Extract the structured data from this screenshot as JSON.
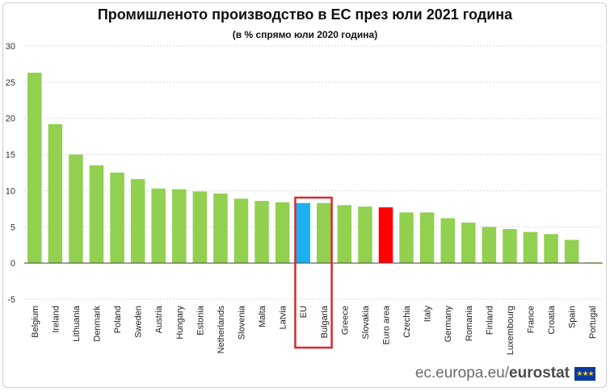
{
  "title": "Промишленото производство в ЕС през юли 2021 година",
  "subtitle": "(в % спрямо юли 2020 година)",
  "footer": {
    "site": "ec.europa.eu/",
    "brand": "eurostat",
    "flag_icon": "eu-flag-icon"
  },
  "colors": {
    "default": "#92d050",
    "eu": "#1bb0ef",
    "euro_area": "#ff0000",
    "highlight_box": "#d9282f",
    "grid": "#d9d9d9"
  },
  "chart_data": {
    "type": "bar",
    "title": "Промишленото производство в ЕС през юли 2021 година",
    "subtitle": "(в % спрямо юли 2020 година)",
    "ylim": [
      -5,
      30
    ],
    "yticks": [
      -5,
      0,
      5,
      10,
      15,
      20,
      25,
      30
    ],
    "grid": true,
    "categories": [
      "Belgium",
      "Ireland",
      "Lithuania",
      "Denmark",
      "Poland",
      "Sweden",
      "Austria",
      "Hungary",
      "Estonia",
      "Netherlands",
      "Slovenia",
      "Malta",
      "Latvia",
      "EU",
      "Bulgaria",
      "Greece",
      "Slovakia",
      "Euro area",
      "Czechia",
      "Italy",
      "Germany",
      "Romania",
      "Finland",
      "Luxembourg",
      "France",
      "Croatia",
      "Spain",
      "Portugal"
    ],
    "values": [
      26.3,
      19.2,
      15.0,
      13.5,
      12.5,
      11.6,
      10.3,
      10.2,
      9.9,
      9.6,
      8.9,
      8.6,
      8.4,
      8.3,
      8.3,
      8.0,
      7.8,
      7.7,
      7.0,
      7.0,
      6.2,
      5.6,
      5.0,
      4.7,
      4.3,
      4.0,
      3.2,
      0.1
    ],
    "highlighted": [
      "EU",
      "Bulgaria"
    ]
  }
}
